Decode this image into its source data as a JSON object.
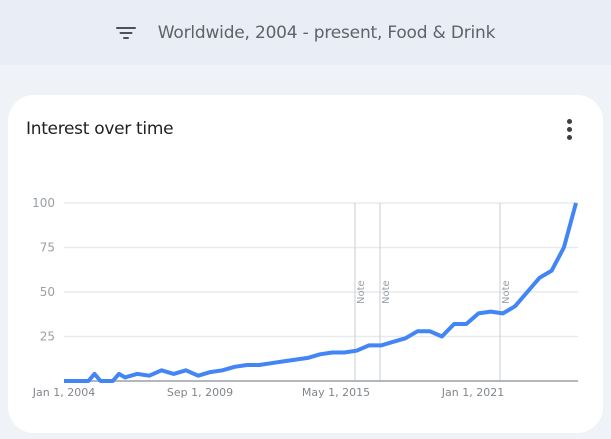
{
  "topbar": {
    "icon": "filter-icon",
    "filter_text": "Worldwide, 2004 - present, Food & Drink"
  },
  "card": {
    "title": "Interest over time",
    "menu_icon": "more-vert-icon"
  },
  "colors": {
    "line": "#4285f4",
    "grid": "#e8eaed",
    "axis": "#9aa0a6",
    "note_line": "#d2d4d7"
  },
  "chart_data": {
    "type": "line",
    "title": "Interest over time",
    "xlabel": "",
    "ylabel": "",
    "ylim": [
      0,
      100
    ],
    "y_ticks": [
      25,
      50,
      75,
      100
    ],
    "x_tick_labels": [
      "Jan 1, 2004",
      "Sep 1, 2009",
      "May 1, 2015",
      "Jan 1, 2021"
    ],
    "grid": true,
    "legend": "none",
    "annotations": [
      {
        "label": "Note",
        "approx_date": "2016-01"
      },
      {
        "label": "Note",
        "approx_date": "2017-01"
      },
      {
        "label": "Note",
        "approx_date": "2022-01"
      }
    ],
    "series": [
      {
        "name": "Food & Drink",
        "x": [
          "2004-01",
          "2004-07",
          "2005-01",
          "2005-04",
          "2005-07",
          "2006-01",
          "2006-04",
          "2006-07",
          "2007-01",
          "2007-07",
          "2008-01",
          "2008-07",
          "2009-01",
          "2009-07",
          "2010-01",
          "2010-07",
          "2011-01",
          "2011-07",
          "2012-01",
          "2012-07",
          "2013-01",
          "2013-07",
          "2014-01",
          "2014-07",
          "2015-01",
          "2015-07",
          "2016-01",
          "2016-07",
          "2017-01",
          "2017-07",
          "2018-01",
          "2018-07",
          "2019-01",
          "2019-07",
          "2020-01",
          "2020-07",
          "2021-01",
          "2021-07",
          "2022-01",
          "2022-07",
          "2023-01",
          "2023-07",
          "2024-01",
          "2024-07",
          "2025-01"
        ],
        "values": [
          0,
          0,
          0,
          4,
          0,
          0,
          4,
          2,
          4,
          3,
          6,
          4,
          6,
          3,
          5,
          6,
          8,
          9,
          9,
          10,
          11,
          12,
          13,
          15,
          16,
          16,
          17,
          20,
          20,
          22,
          24,
          28,
          28,
          25,
          32,
          32,
          38,
          39,
          38,
          42,
          50,
          58,
          62,
          75,
          100
        ]
      }
    ]
  }
}
